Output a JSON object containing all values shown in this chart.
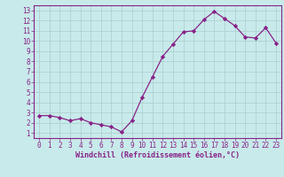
{
  "x": [
    0,
    1,
    2,
    3,
    4,
    5,
    6,
    7,
    8,
    9,
    10,
    11,
    12,
    13,
    14,
    15,
    16,
    17,
    18,
    19,
    20,
    21,
    22,
    23
  ],
  "y": [
    2.7,
    2.7,
    2.5,
    2.2,
    2.4,
    2.0,
    1.8,
    1.6,
    1.1,
    2.2,
    4.5,
    6.5,
    8.5,
    9.7,
    10.9,
    11.0,
    12.1,
    12.9,
    12.2,
    11.5,
    10.4,
    10.3,
    11.3,
    9.8
  ],
  "line_color": "#882288",
  "marker": "D",
  "markersize": 2.2,
  "linewidth": 0.9,
  "xlabel": "Windchill (Refroidissement éolien,°C)",
  "xlabel_fontsize": 6,
  "ylabel_ticks": [
    1,
    2,
    3,
    4,
    5,
    6,
    7,
    8,
    9,
    10,
    11,
    12,
    13
  ],
  "xlim": [
    -0.5,
    23.5
  ],
  "ylim": [
    0.5,
    13.5
  ],
  "bg_color": "#c8eaea",
  "grid_color": "#aacccc",
  "border_color": "#882288",
  "tick_color": "#882288",
  "tick_fontsize": 5.5,
  "bottom_bar_color": "#882288",
  "bottom_bar_height": 0.018
}
